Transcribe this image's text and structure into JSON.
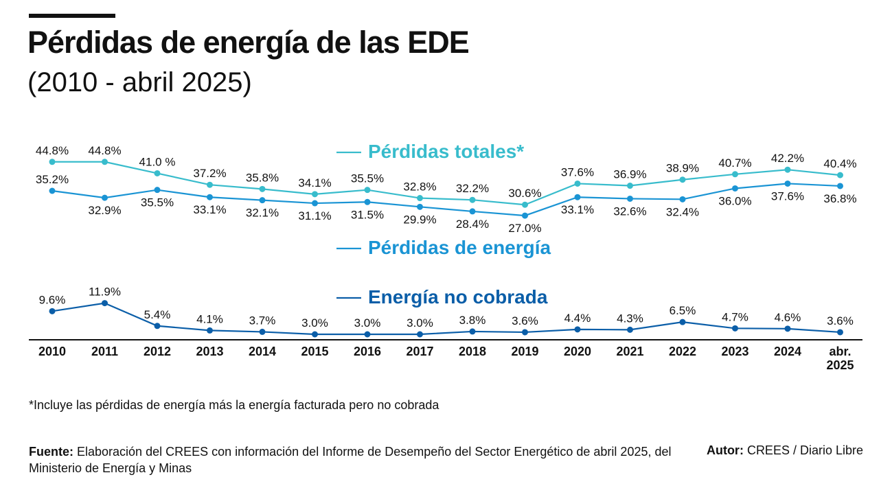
{
  "header": {
    "title": "Pérdidas de energía de las EDE",
    "subtitle": "(2010 - abril 2025)"
  },
  "chart_data": {
    "type": "line",
    "categories": [
      "2010",
      "2011",
      "2012",
      "2013",
      "2014",
      "2015",
      "2016",
      "2017",
      "2018",
      "2019",
      "2020",
      "2021",
      "2022",
      "2023",
      "2024",
      "abr.\n2025"
    ],
    "series": [
      {
        "name": "Pérdidas totales*",
        "color": "#38bccc",
        "values": [
          44.8,
          44.8,
          41.0,
          37.2,
          35.8,
          34.1,
          35.5,
          32.8,
          32.2,
          30.6,
          37.6,
          36.9,
          38.9,
          40.7,
          42.2,
          40.4
        ],
        "labels": [
          "44.8%",
          "44.8%",
          "41.0 %",
          "37.2%",
          "35.8%",
          "34.1%",
          "35.5%",
          "32.8%",
          "32.2%",
          "30.6%",
          "37.6%",
          "36.9%",
          "38.9%",
          "40.7%",
          "42.2%",
          "40.4%"
        ]
      },
      {
        "name": "Pérdidas de energía",
        "color": "#1a94d4",
        "values": [
          35.2,
          32.9,
          35.5,
          33.1,
          32.1,
          31.1,
          31.5,
          29.9,
          28.4,
          27.0,
          33.1,
          32.6,
          32.4,
          36.0,
          37.6,
          36.8
        ],
        "labels": [
          "35.2%",
          "32.9%",
          "35.5%",
          "33.1%",
          "32.1%",
          "31.1%",
          "31.5%",
          "29.9%",
          "28.4%",
          "27.0%",
          "33.1%",
          "32.6%",
          "32.4%",
          "36.0%",
          "37.6%",
          "36.8%"
        ]
      },
      {
        "name": "Energía no cobrada",
        "color": "#0b5ea8",
        "values": [
          9.6,
          11.9,
          5.4,
          4.1,
          3.7,
          3.0,
          3.0,
          3.0,
          3.8,
          3.6,
          4.4,
          4.3,
          6.5,
          4.7,
          4.6,
          3.6
        ],
        "labels": [
          "9.6%",
          "11.9%",
          "5.4%",
          "4.1%",
          "3.7%",
          "3.0%",
          "3.0%",
          "3.0%",
          "3.8%",
          "3.6%",
          "4.4%",
          "4.3%",
          "6.5%",
          "4.7%",
          "4.6%",
          "3.6%"
        ]
      }
    ],
    "title": "Pérdidas de energía de las EDE",
    "subtitle": "(2010 - abril 2025)",
    "xlabel": "",
    "ylabel": "",
    "grid": false
  },
  "notes": {
    "footnote": "*Incluye las pérdidas de energía más la energía facturada pero no cobrada",
    "source_label": "Fuente:",
    "source_text": " Elaboración del CREES con información del Informe de Desempeño del Sector Energético de abril 2025, del Ministerio de Energía y Minas",
    "author_label": "Autor:",
    "author_text": " CREES / Diario Libre"
  }
}
